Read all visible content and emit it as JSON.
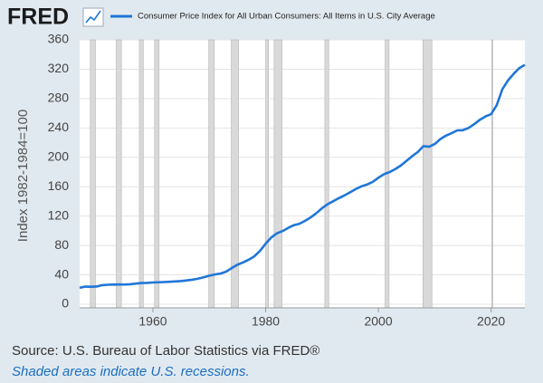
{
  "chart_data": {
    "type": "line",
    "brand": "FRED",
    "source": "Source: U.S. Bureau of Labor Statistics via FRED®",
    "note": "Shaded areas indicate U.S. recessions.",
    "y_label": "Index 1982-1984=100",
    "grid": "y",
    "xlim": [
      1947,
      2026
    ],
    "ylim": [
      0,
      360
    ],
    "xticks": [
      1960,
      1980,
      2000,
      2020
    ],
    "yticks": [
      0,
      40,
      80,
      120,
      160,
      200,
      240,
      280,
      320,
      360
    ],
    "recessions": [
      [
        1948.9,
        1949.8
      ],
      [
        1953.5,
        1954.4
      ],
      [
        1957.6,
        1958.3
      ],
      [
        1960.3,
        1961.1
      ],
      [
        1969.9,
        1970.9
      ],
      [
        1973.9,
        1975.2
      ],
      [
        1980.0,
        1980.5
      ],
      [
        1981.5,
        1982.9
      ],
      [
        1990.5,
        1991.2
      ],
      [
        2001.2,
        2001.9
      ],
      [
        2007.9,
        2009.5
      ],
      [
        2020.1,
        2020.3
      ]
    ],
    "recession_color": "#d9d9d9",
    "x": [
      1947,
      1948,
      1949,
      1950,
      1951,
      1952,
      1953,
      1954,
      1955,
      1956,
      1957,
      1958,
      1959,
      1960,
      1961,
      1962,
      1963,
      1964,
      1965,
      1966,
      1967,
      1968,
      1969,
      1970,
      1971,
      1972,
      1973,
      1974,
      1975,
      1976,
      1977,
      1978,
      1979,
      1980,
      1981,
      1982,
      1983,
      1984,
      1985,
      1986,
      1987,
      1988,
      1989,
      1990,
      1991,
      1992,
      1993,
      1994,
      1995,
      1996,
      1997,
      1998,
      1999,
      2000,
      2001,
      2002,
      2003,
      2004,
      2005,
      2006,
      2007,
      2008,
      2009,
      2010,
      2011,
      2012,
      2013,
      2014,
      2015,
      2016,
      2017,
      2018,
      2019,
      2020,
      2021,
      2022,
      2023,
      2024,
      2025,
      2026
    ],
    "series": [
      {
        "name": "Consumer Price Index for All Urban Consumers: All Items in U.S. City Average",
        "color": "#1f76d8",
        "values": [
          22.3,
          24.0,
          23.8,
          24.1,
          26.0,
          26.5,
          26.7,
          26.9,
          26.8,
          27.2,
          28.1,
          28.9,
          29.1,
          29.6,
          29.9,
          30.2,
          30.6,
          31.0,
          31.5,
          32.4,
          33.4,
          34.8,
          36.7,
          38.8,
          40.5,
          41.8,
          44.4,
          49.3,
          53.8,
          56.9,
          60.6,
          65.2,
          72.6,
          82.4,
          90.9,
          96.5,
          99.6,
          103.9,
          107.6,
          109.6,
          113.6,
          118.3,
          124.0,
          130.7,
          136.2,
          140.3,
          144.5,
          148.2,
          152.4,
          156.9,
          160.5,
          163.0,
          166.6,
          172.2,
          177.1,
          179.9,
          184.0,
          188.9,
          195.3,
          201.6,
          207.3,
          215.3,
          214.5,
          218.1,
          224.9,
          229.6,
          233.0,
          236.7,
          237.0,
          240.0,
          245.1,
          251.1,
          255.7,
          258.8,
          271.0,
          292.7,
          304.7,
          313.7,
          321.5,
          326.0
        ]
      }
    ]
  }
}
